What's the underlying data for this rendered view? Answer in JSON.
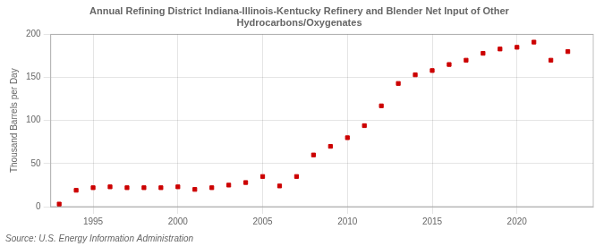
{
  "chart_data": {
    "type": "scatter",
    "title": "Annual Refining District Indiana-Illinois-Kentucky Refinery and Blender Net Input of Other\nHydrocarbons/Oxygenates",
    "ylabel": "Thousand Barrels per Day",
    "annotations": [
      "Source: U.S. Energy Information Administration"
    ],
    "x": [
      1993,
      1994,
      1995,
      1996,
      1997,
      1998,
      1999,
      2000,
      2001,
      2002,
      2003,
      2004,
      2005,
      2006,
      2007,
      2008,
      2009,
      2010,
      2011,
      2012,
      2013,
      2014,
      2015,
      2016,
      2017,
      2018,
      2019,
      2020,
      2021,
      2022,
      2023
    ],
    "values": [
      3,
      19,
      22,
      23,
      22,
      22,
      22,
      23,
      20,
      22,
      25,
      28,
      35,
      24,
      35,
      60,
      70,
      80,
      94,
      117,
      143,
      153,
      158,
      165,
      170,
      178,
      183,
      185,
      191,
      170,
      180
    ],
    "color": "#cc0000",
    "marker": "square",
    "xlim": [
      1992.5,
      2024.5
    ],
    "xticks": [
      1995,
      2000,
      2005,
      2010,
      2015,
      2020
    ],
    "ylim": [
      0,
      200
    ],
    "yticks": [
      0,
      50,
      100,
      150,
      200
    ],
    "grid": true
  }
}
